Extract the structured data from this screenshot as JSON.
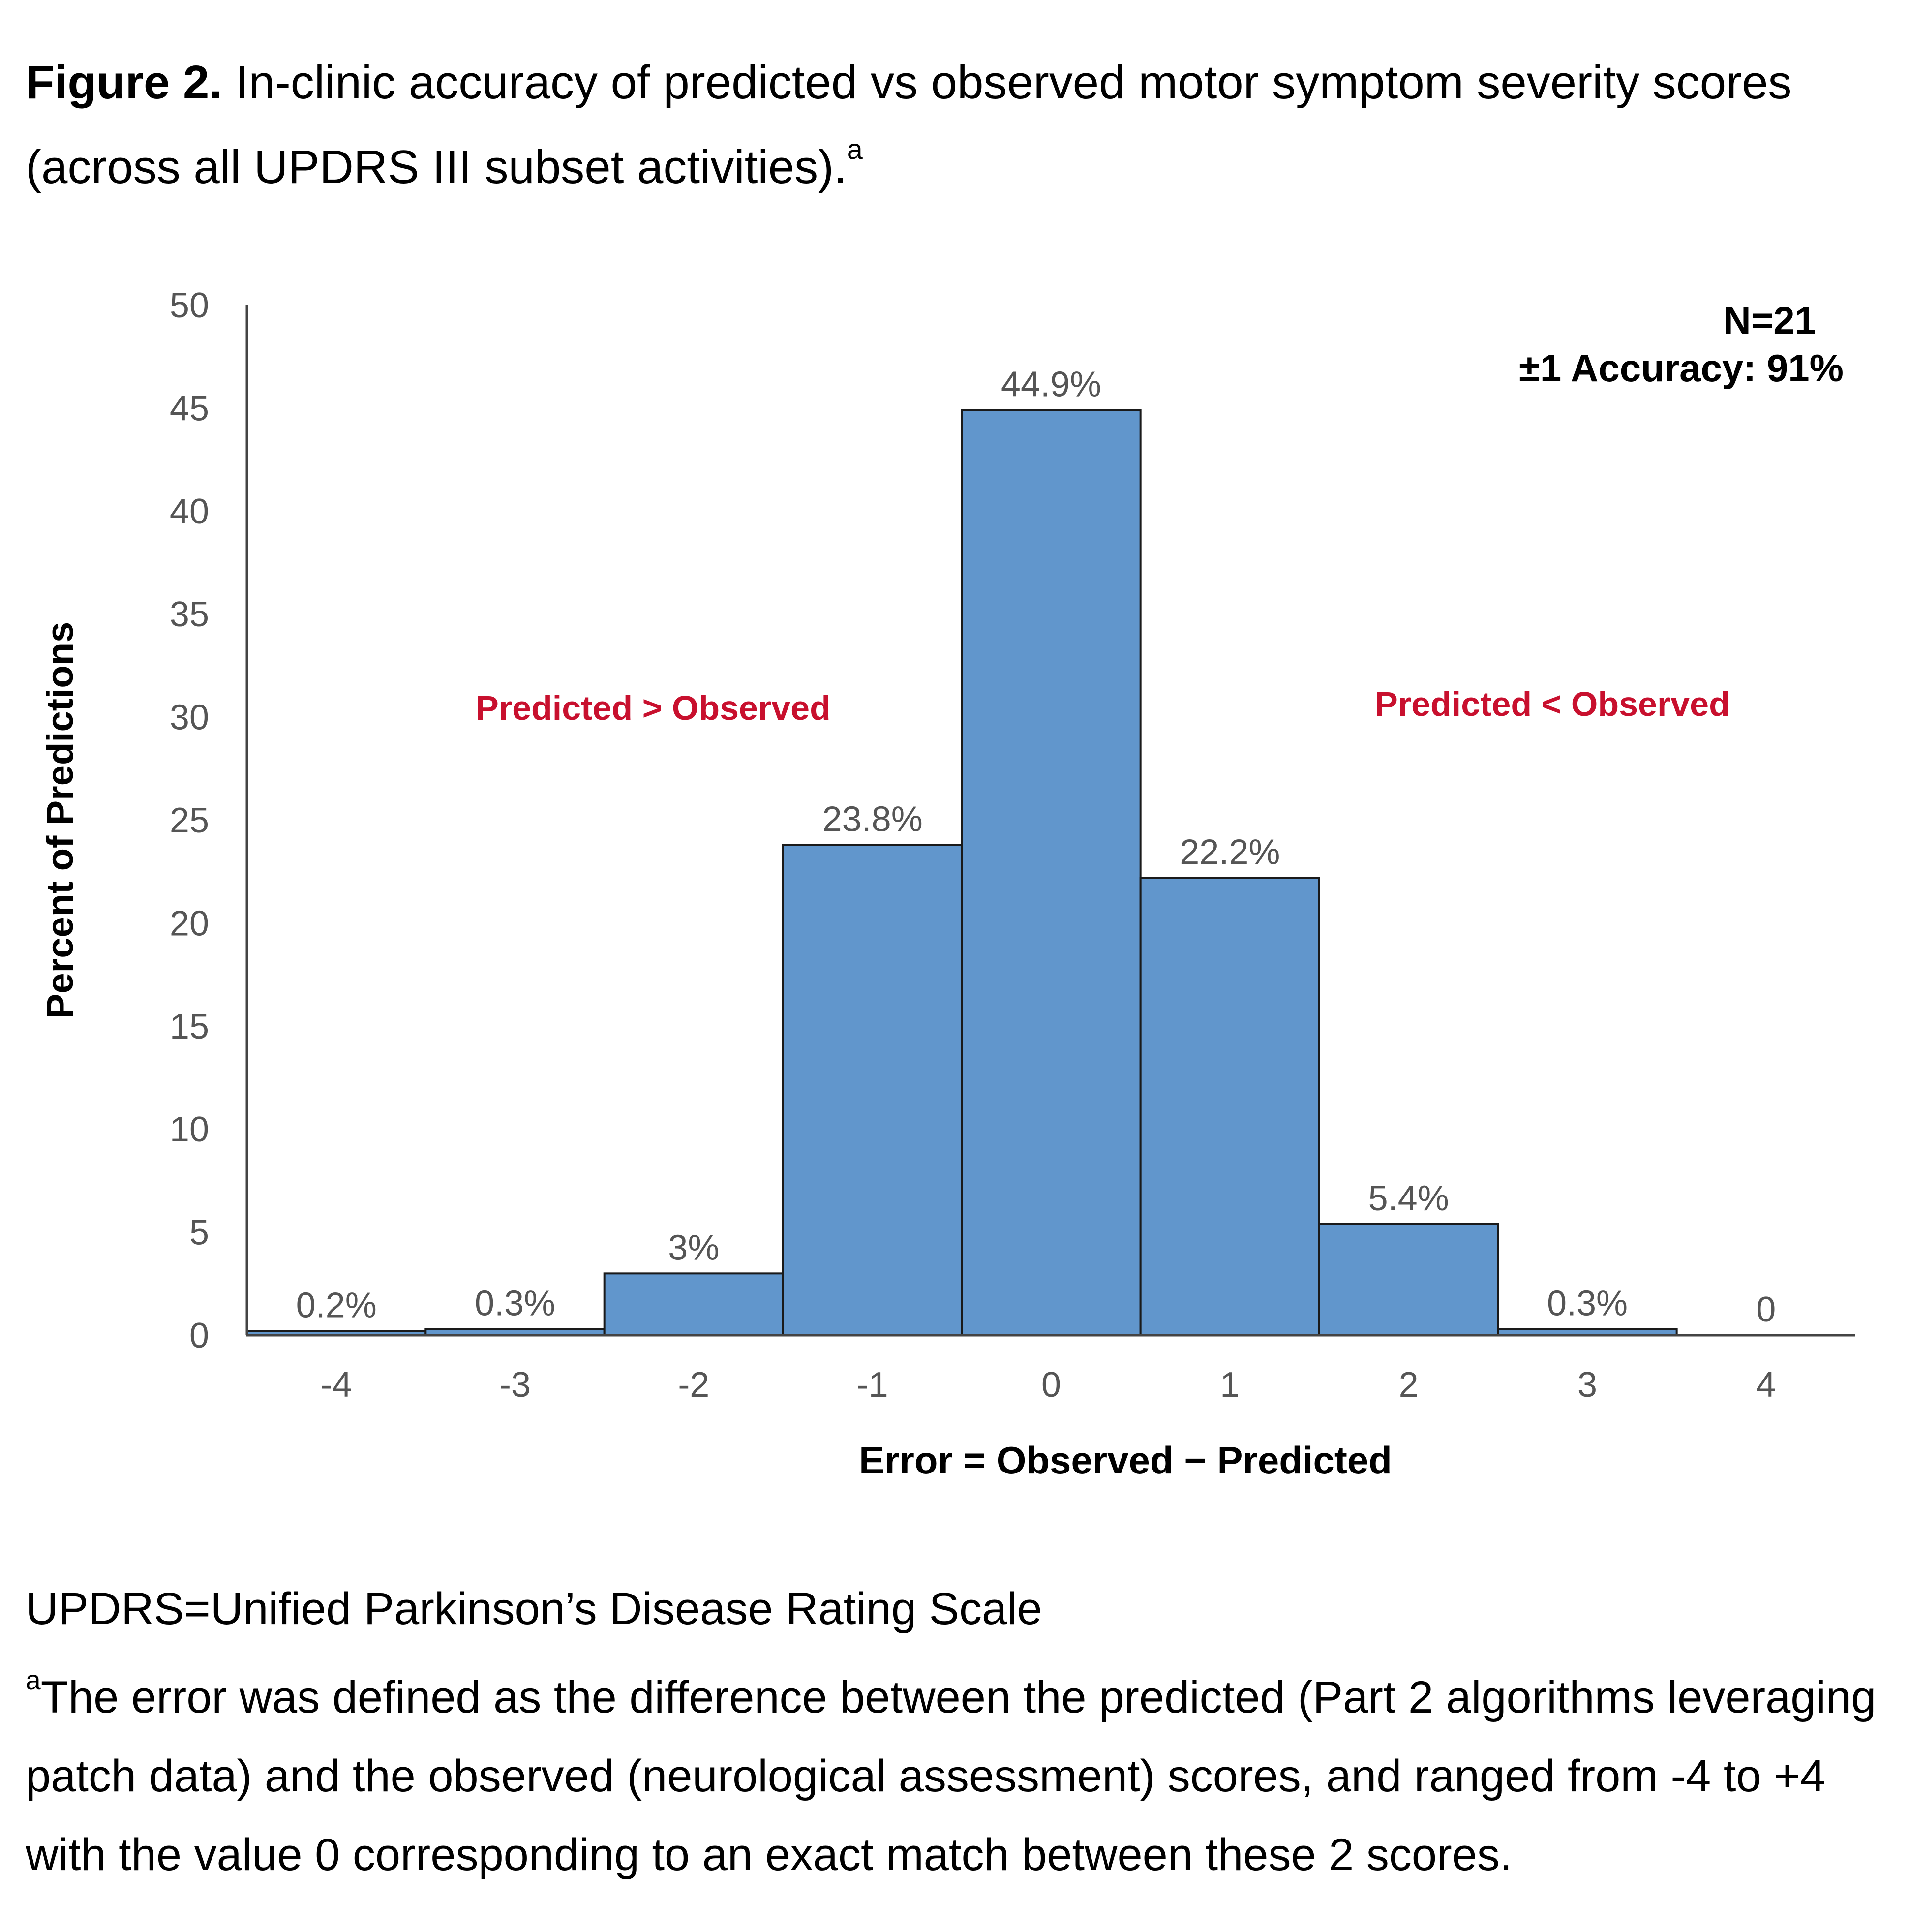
{
  "caption": {
    "label": "Figure 2.",
    "text": " In-clinic accuracy of predicted vs observed motor symptom severity scores (across all UPDRS III subset activities).",
    "sup": "a"
  },
  "chart_data": {
    "type": "bar",
    "categories": [
      "-4",
      "-3",
      "-2",
      "-1",
      "0",
      "1",
      "2",
      "3",
      "4"
    ],
    "values": [
      0.2,
      0.3,
      3,
      23.8,
      44.9,
      22.2,
      5.4,
      0.3,
      0
    ],
    "data_labels": [
      "0.2%",
      "0.3%",
      "3%",
      "23.8%",
      "44.9%",
      "22.2%",
      "5.4%",
      "0.3%",
      "0"
    ],
    "title": "",
    "xlabel": "Error = Observed − Predicted",
    "ylabel": "Percent of Predictions",
    "ylim": [
      0,
      50
    ],
    "yticks": [
      0,
      5,
      10,
      15,
      20,
      25,
      30,
      35,
      40,
      45,
      50
    ],
    "grid": false,
    "bar_color": "#6196cc",
    "bar_edge_color": "#1a1a1a",
    "annotations": {
      "n": "N=21",
      "accuracy": "±1 Accuracy: 91%",
      "left_region": "Predicted > Observed",
      "right_region": "Predicted < Observed",
      "region_color": "#c8102e"
    }
  },
  "footnotes": {
    "abbreviation": "UPDRS=Unified Parkinson’s Disease Rating Scale",
    "sup": "a",
    "note": "The error was defined as the difference between the predicted (Part 2 algorithms leveraging patch data) and the observed (neurological assessment) scores, and ranged from -4 to +4 with the value 0 corresponding to an exact match between these 2 scores."
  }
}
